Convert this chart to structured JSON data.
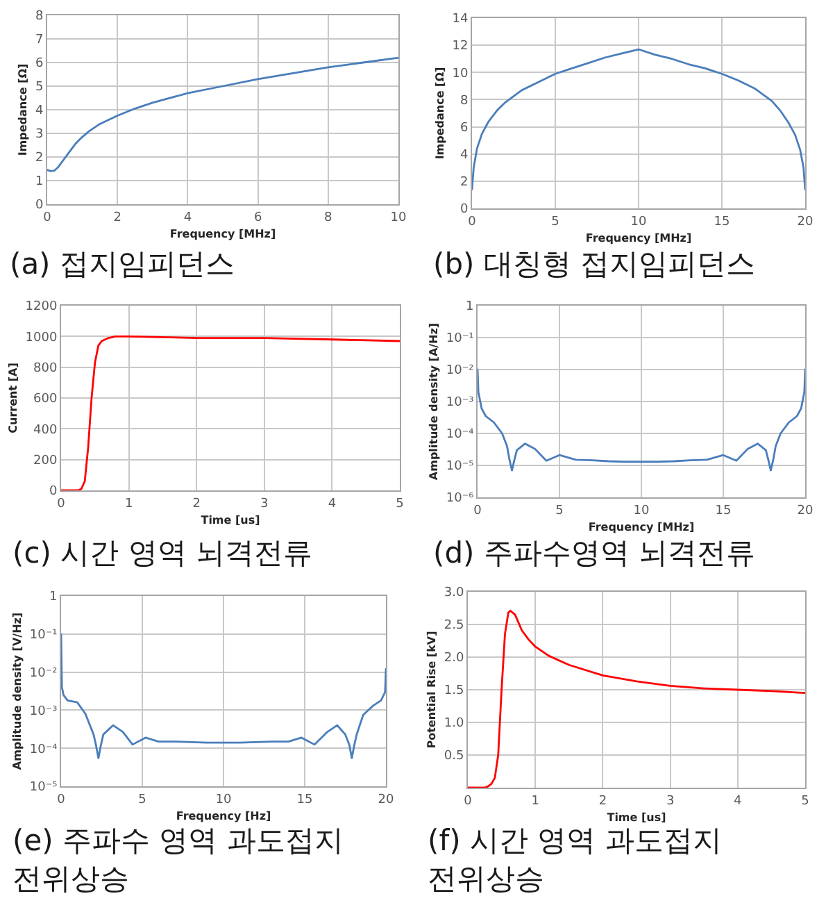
{
  "chart_data": [
    {
      "type": "line",
      "title": "(a) 접지임피던스",
      "xlabel": "Frequency [MHz]",
      "ylabel": "Impedance [Ω]",
      "x": [
        0,
        0.1,
        0.2,
        0.3,
        0.4,
        0.6,
        0.8,
        1,
        1.2,
        1.5,
        2,
        2.5,
        3,
        4,
        5,
        6,
        7,
        8,
        9,
        10
      ],
      "series": [
        {
          "color": "#4a7ebb",
          "values": [
            1.45,
            1.4,
            1.42,
            1.55,
            1.75,
            2.15,
            2.55,
            2.85,
            3.1,
            3.4,
            3.75,
            4.05,
            4.3,
            4.7,
            5.0,
            5.3,
            5.55,
            5.8,
            6.0,
            6.2
          ]
        }
      ],
      "xlim": [
        0,
        10
      ],
      "ylim": [
        0,
        8
      ],
      "xticks": [
        0,
        2,
        4,
        6,
        8,
        10
      ],
      "yticks": [
        0,
        1,
        2,
        3,
        4,
        5,
        6,
        7,
        8
      ],
      "grid": true
    },
    {
      "type": "line",
      "title": "(b) 대칭형 접지임피던스",
      "xlabel": "Frequency [MHz]",
      "ylabel": "Impedance [Ω]",
      "x": [
        0,
        0.1,
        0.3,
        0.6,
        1,
        1.5,
        2,
        3,
        4,
        5,
        6,
        7,
        8,
        9,
        10,
        11,
        12,
        13,
        14,
        15,
        16,
        17,
        18,
        18.5,
        19,
        19.4,
        19.7,
        19.9,
        20
      ],
      "series": [
        {
          "color": "#4a7ebb",
          "values": [
            1.4,
            3.0,
            4.4,
            5.5,
            6.4,
            7.2,
            7.8,
            8.7,
            9.3,
            9.9,
            10.3,
            10.7,
            11.1,
            11.4,
            11.7,
            11.3,
            11.0,
            10.6,
            10.3,
            9.9,
            9.4,
            8.8,
            7.9,
            7.2,
            6.3,
            5.4,
            4.3,
            3.0,
            1.4
          ]
        }
      ],
      "xlim": [
        0,
        20
      ],
      "ylim": [
        0,
        14
      ],
      "xticks": [
        0,
        5,
        10,
        15,
        20
      ],
      "yticks": [
        0,
        2,
        4,
        6,
        8,
        10,
        12,
        14
      ],
      "grid": true
    },
    {
      "type": "line",
      "title": "(c) 시간 영역 뇌격전류",
      "xlabel": "Time [us]",
      "ylabel": "Current [A]",
      "x": [
        0,
        0.25,
        0.3,
        0.35,
        0.4,
        0.45,
        0.5,
        0.55,
        0.6,
        0.7,
        0.8,
        1,
        2,
        3,
        4,
        5
      ],
      "series": [
        {
          "color": "#ff0000",
          "values": [
            0,
            0,
            10,
            60,
            280,
            600,
            830,
            940,
            970,
            990,
            1000,
            1000,
            990,
            990,
            980,
            970
          ]
        }
      ],
      "xlim": [
        0,
        5
      ],
      "ylim": [
        0,
        1200
      ],
      "xticks": [
        0,
        1,
        2,
        3,
        4,
        5
      ],
      "yticks": [
        0,
        200,
        400,
        600,
        800,
        1000,
        1200
      ],
      "grid": true
    },
    {
      "type": "line",
      "title": "(d) 주파수영역 뇌격전류",
      "xlabel": "Frequency [MHz]",
      "ylabel": "Amplitude density [A/Hz]",
      "x": [
        0,
        0.05,
        0.25,
        0.5,
        1,
        1.5,
        1.8,
        1.95,
        2.1,
        2.25,
        2.4,
        2.9,
        3.5,
        4.2,
        5,
        6,
        7,
        8,
        9,
        10,
        11,
        12,
        13,
        14,
        15,
        15.8,
        16.5,
        17.1,
        17.6,
        17.75,
        17.9,
        18.05,
        18.2,
        18.5,
        19,
        19.5,
        19.75,
        19.95,
        20
      ],
      "series": [
        {
          "color": "#4a7ebb",
          "values": [
            0.01,
            0.002,
            0.0006,
            0.00035,
            0.00022,
            0.0001,
            4e-05,
            1.5e-05,
            7e-06,
            1.5e-05,
            3e-05,
            4.8e-05,
            3.3e-05,
            1.4e-05,
            2.1e-05,
            1.5e-05,
            1.45e-05,
            1.35e-05,
            1.3e-05,
            1.3e-05,
            1.3e-05,
            1.35e-05,
            1.45e-05,
            1.5e-05,
            2.1e-05,
            1.4e-05,
            3.3e-05,
            4.8e-05,
            3e-05,
            1.5e-05,
            7e-06,
            1.5e-05,
            4e-05,
            0.0001,
            0.00022,
            0.00035,
            0.0006,
            0.002,
            0.01
          ]
        }
      ],
      "xlim": [
        0,
        20
      ],
      "ylim": [
        1e-06,
        1
      ],
      "xticks": [
        0,
        5,
        10,
        15,
        20
      ],
      "yticks": [
        {
          "value": 1e-06,
          "label": "10⁻⁶"
        },
        {
          "value": 1e-05,
          "label": "10⁻⁵"
        },
        {
          "value": 0.0001,
          "label": "10⁻⁴"
        },
        {
          "value": 0.001,
          "label": "10⁻³"
        },
        {
          "value": 0.01,
          "label": "10⁻²"
        },
        {
          "value": 0.1,
          "label": "10⁻¹"
        },
        1
      ],
      "log": true,
      "grid": true
    },
    {
      "type": "line",
      "title": "(e) 주파수 영역 과도접지 전위상승",
      "xlabel": "Frequency [Hz]",
      "ylabel": "Amplitude density [V/Hz]",
      "x": [
        0,
        0.05,
        0.15,
        0.4,
        1,
        1.5,
        2,
        2.15,
        2.3,
        2.45,
        2.6,
        3.2,
        3.8,
        4.4,
        5.2,
        6,
        7,
        8,
        9,
        10,
        11,
        12,
        13,
        14,
        14.8,
        15.6,
        16.4,
        17,
        17.5,
        17.75,
        17.9,
        18.05,
        18.2,
        18.6,
        19.2,
        19.7,
        19.95,
        20
      ],
      "series": [
        {
          "color": "#4a7ebb",
          "values": [
            0.1,
            0.004,
            0.0025,
            0.0018,
            0.0016,
            0.0008,
            0.00023,
            0.00012,
            5.5e-05,
            0.00012,
            0.00023,
            0.0004,
            0.00027,
            0.000125,
            0.00019,
            0.00015,
            0.00015,
            0.000145,
            0.00014,
            0.00014,
            0.00014,
            0.000145,
            0.00015,
            0.00015,
            0.00019,
            0.000125,
            0.00027,
            0.0004,
            0.00023,
            0.00012,
            5.5e-05,
            0.00012,
            0.00023,
            0.00075,
            0.0013,
            0.0018,
            0.003,
            0.012
          ]
        }
      ],
      "xlim": [
        0,
        20
      ],
      "ylim": [
        1e-05,
        1
      ],
      "xticks": [
        0,
        5,
        10,
        15,
        20
      ],
      "yticks": [
        {
          "value": 1e-05,
          "label": "10⁻⁵"
        },
        {
          "value": 0.0001,
          "label": "10⁻⁴"
        },
        {
          "value": 0.001,
          "label": "10⁻³"
        },
        {
          "value": 0.01,
          "label": "10⁻²"
        },
        {
          "value": 0.1,
          "label": "10⁻¹"
        },
        1
      ],
      "log": true,
      "grid": true
    },
    {
      "type": "line",
      "title": "(f) 시간 영역 과도접지 전위상승",
      "xlabel": "Time [us]",
      "ylabel": "Potential Rise [kV]",
      "x": [
        0,
        0.25,
        0.3,
        0.35,
        0.4,
        0.45,
        0.5,
        0.55,
        0.6,
        0.63,
        0.7,
        0.8,
        0.9,
        1,
        1.2,
        1.5,
        2,
        2.5,
        3,
        3.5,
        4,
        4.5,
        5
      ],
      "series": [
        {
          "color": "#ff0000",
          "values": [
            0,
            0,
            0.02,
            0.06,
            0.15,
            0.5,
            1.5,
            2.35,
            2.68,
            2.71,
            2.65,
            2.41,
            2.27,
            2.16,
            2.02,
            1.88,
            1.72,
            1.63,
            1.56,
            1.52,
            1.5,
            1.48,
            1.45
          ]
        }
      ],
      "xlim": [
        0,
        5
      ],
      "ylim": [
        0,
        3
      ],
      "xticks": [
        0,
        1,
        2,
        3,
        4,
        5
      ],
      "yticks": [
        {
          "value": 0,
          "label": null
        },
        0.5,
        {
          "value": 1,
          "label": "1.0"
        },
        1.5,
        {
          "value": 2,
          "label": "2.0"
        },
        2.5,
        {
          "value": 3,
          "label": "3.0"
        }
      ],
      "grid": true
    }
  ]
}
